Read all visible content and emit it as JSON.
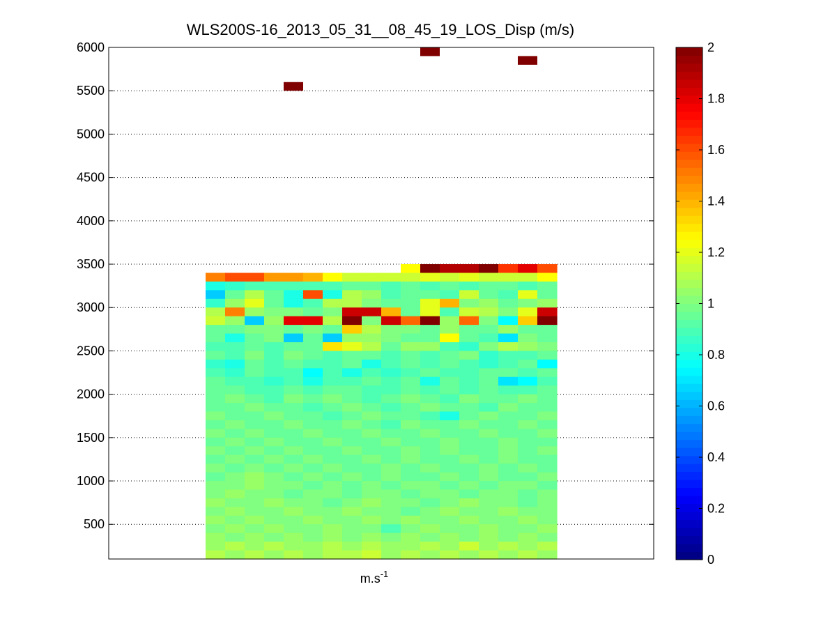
{
  "chart_data": {
    "type": "heatmap",
    "title": "WLS200S-16_2013_05_31__08_45_19_LOS_Disp (m/s)",
    "xlabel": "m.s",
    "xlabel_superscript": "-1",
    "ylabel": "",
    "ylim": [
      100,
      6000
    ],
    "yticks": [
      500,
      1000,
      1500,
      2000,
      2500,
      3000,
      3500,
      4000,
      4500,
      5000,
      5500,
      6000
    ],
    "ygrid": true,
    "grid_style": "dotted",
    "colorbar": {
      "colormap": "jet",
      "range": [
        0,
        2
      ],
      "ticks": [
        "0",
        "0.2",
        "0.4",
        "0.6",
        "0.8",
        "1",
        "1.2",
        "1.4",
        "1.6",
        "1.8",
        "2"
      ]
    },
    "columns": 18,
    "cell_height_m": 100,
    "outlier_cells": [
      {
        "column": 4,
        "altitude": 5550,
        "value": 2.0
      },
      {
        "column": 11,
        "altitude": 5950,
        "value": 2.0
      },
      {
        "column": 16,
        "altitude": 5850,
        "value": 2.0
      }
    ],
    "data_rows": [
      {
        "altitude": 3450,
        "values": [
          null,
          null,
          null,
          null,
          null,
          null,
          null,
          null,
          null,
          null,
          1.25,
          2.0,
          1.9,
          1.9,
          2.0,
          1.65,
          1.8,
          1.6
        ]
      },
      {
        "altitude": 3350,
        "values": [
          1.5,
          1.6,
          1.6,
          1.45,
          1.45,
          1.4,
          1.25,
          1.15,
          1.15,
          1.15,
          1.15,
          1.2,
          1.15,
          1.2,
          1.15,
          1.15,
          1.15,
          1.25
        ]
      },
      {
        "altitude": 3250,
        "values": [
          0.8,
          0.85,
          0.9,
          0.9,
          0.9,
          0.9,
          0.9,
          0.95,
          0.95,
          0.9,
          0.95,
          0.9,
          0.95,
          0.9,
          0.95,
          0.95,
          0.9,
          0.95
        ]
      },
      {
        "altitude": 3150,
        "values": [
          0.65,
          0.95,
          1.1,
          0.95,
          0.8,
          1.6,
          0.8,
          1.1,
          1.05,
          0.9,
          0.95,
          0.95,
          0.9,
          1.15,
          0.95,
          0.9,
          1.2,
          0.95
        ]
      },
      {
        "altitude": 3050,
        "values": [
          0.85,
          1.05,
          1.2,
          0.95,
          0.8,
          0.9,
          1.1,
          1.1,
          1.0,
          0.95,
          0.95,
          1.2,
          1.4,
          1.0,
          1.05,
          0.95,
          1.0,
          1.05
        ]
      },
      {
        "altitude": 2950,
        "values": [
          1.1,
          1.5,
          1.05,
          1.0,
          1.0,
          0.95,
          1.0,
          1.85,
          1.85,
          1.4,
          0.95,
          1.2,
          0.9,
          1.15,
          1.1,
          1.0,
          1.2,
          1.85
        ]
      },
      {
        "altitude": 2850,
        "values": [
          1.15,
          1.05,
          0.65,
          1.05,
          1.8,
          1.8,
          1.1,
          2.0,
          1.0,
          1.85,
          1.55,
          2.0,
          1.05,
          1.55,
          1.0,
          0.75,
          1.35,
          2.0
        ]
      },
      {
        "altitude": 2750,
        "values": [
          0.95,
          0.95,
          1.0,
          1.0,
          0.95,
          1.0,
          0.95,
          1.35,
          1.1,
          1.0,
          1.0,
          0.95,
          1.05,
          0.95,
          0.95,
          1.05,
          0.95,
          0.95
        ]
      },
      {
        "altitude": 2650,
        "values": [
          0.95,
          0.8,
          0.95,
          1.0,
          0.65,
          0.95,
          0.65,
          1.05,
          1.05,
          1.0,
          0.95,
          0.95,
          1.25,
          0.95,
          0.9,
          0.7,
          1.0,
          0.95
        ]
      },
      {
        "altitude": 2550,
        "values": [
          0.9,
          0.9,
          0.95,
          0.9,
          0.95,
          0.95,
          1.3,
          1.2,
          1.1,
          0.95,
          1.05,
          1.05,
          0.9,
          0.85,
          1.0,
          1.1,
          1.05,
          1.0
        ]
      },
      {
        "altitude": 2450,
        "values": [
          0.95,
          0.9,
          1.0,
          0.9,
          1.0,
          0.95,
          0.9,
          0.95,
          0.95,
          0.9,
          0.95,
          0.9,
          0.95,
          1.0,
          0.85,
          0.9,
          0.9,
          0.95
        ]
      },
      {
        "altitude": 2350,
        "values": [
          0.85,
          0.8,
          0.95,
          0.9,
          0.95,
          0.9,
          0.9,
          0.95,
          0.8,
          0.9,
          0.95,
          0.9,
          0.95,
          0.9,
          0.85,
          0.9,
          0.95,
          0.75
        ]
      },
      {
        "altitude": 2250,
        "values": [
          0.9,
          0.85,
          0.95,
          0.9,
          0.9,
          0.75,
          0.9,
          0.8,
          0.9,
          0.85,
          0.9,
          0.95,
          0.9,
          0.9,
          0.95,
          0.95,
          0.9,
          0.95
        ]
      },
      {
        "altitude": 2150,
        "values": [
          0.95,
          0.9,
          0.9,
          0.85,
          0.9,
          0.8,
          0.9,
          0.9,
          0.95,
          0.9,
          0.95,
          0.8,
          0.95,
          0.9,
          0.95,
          0.7,
          0.75,
          0.9
        ]
      },
      {
        "altitude": 2050,
        "values": [
          0.95,
          0.95,
          0.9,
          0.9,
          0.95,
          0.9,
          0.95,
          0.95,
          0.9,
          0.9,
          0.95,
          0.9,
          0.95,
          0.9,
          0.95,
          0.9,
          0.9,
          0.95
        ]
      },
      {
        "altitude": 1950,
        "values": [
          0.95,
          1.0,
          0.95,
          0.9,
          1.0,
          0.95,
          1.0,
          0.95,
          0.9,
          0.95,
          1.0,
          0.95,
          0.9,
          1.0,
          0.95,
          0.95,
          1.0,
          0.95
        ]
      },
      {
        "altitude": 1850,
        "values": [
          0.95,
          0.95,
          1.0,
          0.95,
          0.95,
          0.9,
          0.95,
          1.0,
          0.95,
          0.9,
          0.95,
          1.0,
          0.95,
          0.95,
          0.9,
          1.0,
          0.95,
          0.95
        ]
      },
      {
        "altitude": 1750,
        "values": [
          1.0,
          0.95,
          0.95,
          1.0,
          0.95,
          0.95,
          0.9,
          0.95,
          1.0,
          0.95,
          0.95,
          0.9,
          0.8,
          0.95,
          1.0,
          0.95,
          0.95,
          1.0
        ]
      },
      {
        "altitude": 1650,
        "values": [
          0.95,
          1.0,
          0.95,
          0.95,
          1.0,
          0.95,
          0.95,
          1.0,
          0.95,
          0.9,
          1.0,
          0.95,
          0.95,
          1.0,
          0.95,
          0.95,
          1.0,
          0.95
        ]
      },
      {
        "altitude": 1550,
        "values": [
          1.0,
          0.95,
          1.0,
          0.95,
          0.95,
          1.0,
          0.95,
          0.95,
          1.0,
          0.95,
          0.95,
          1.0,
          0.95,
          0.95,
          1.0,
          0.95,
          0.95,
          1.0
        ]
      },
      {
        "altitude": 1450,
        "values": [
          0.95,
          1.0,
          0.95,
          1.0,
          0.95,
          0.95,
          1.0,
          0.95,
          0.95,
          1.0,
          0.95,
          0.95,
          1.0,
          0.95,
          0.95,
          1.0,
          0.95,
          0.95
        ]
      },
      {
        "altitude": 1350,
        "values": [
          1.0,
          0.95,
          1.0,
          0.95,
          1.0,
          0.95,
          0.95,
          1.0,
          0.95,
          0.95,
          1.0,
          0.95,
          1.0,
          0.95,
          0.95,
          1.0,
          0.95,
          1.0
        ]
      },
      {
        "altitude": 1250,
        "values": [
          0.95,
          1.0,
          0.95,
          1.0,
          0.95,
          1.0,
          0.95,
          0.95,
          1.0,
          0.95,
          1.0,
          0.95,
          0.95,
          1.0,
          0.95,
          1.0,
          0.95,
          0.95
        ]
      },
      {
        "altitude": 1150,
        "values": [
          1.0,
          0.95,
          1.0,
          0.95,
          1.0,
          0.95,
          1.0,
          0.95,
          0.95,
          1.0,
          0.95,
          1.0,
          0.95,
          0.95,
          1.0,
          0.95,
          1.0,
          0.95
        ]
      },
      {
        "altitude": 1050,
        "values": [
          0.95,
          1.0,
          1.05,
          1.0,
          0.95,
          1.0,
          0.95,
          1.0,
          0.95,
          1.0,
          0.95,
          0.95,
          1.0,
          0.95,
          1.0,
          0.95,
          0.95,
          1.0
        ]
      },
      {
        "altitude": 950,
        "values": [
          1.0,
          1.0,
          1.05,
          1.0,
          1.0,
          0.95,
          1.0,
          0.95,
          1.0,
          0.95,
          1.0,
          1.0,
          0.95,
          1.0,
          0.95,
          1.0,
          1.0,
          0.95
        ]
      },
      {
        "altitude": 850,
        "values": [
          1.0,
          1.05,
          1.0,
          1.0,
          0.95,
          1.0,
          1.0,
          0.95,
          1.0,
          1.0,
          0.95,
          1.0,
          1.0,
          0.95,
          1.0,
          1.0,
          0.95,
          1.0
        ]
      },
      {
        "altitude": 750,
        "values": [
          1.05,
          1.0,
          1.0,
          1.05,
          1.0,
          1.0,
          0.95,
          1.0,
          1.05,
          1.0,
          1.0,
          0.95,
          1.0,
          1.05,
          1.0,
          1.0,
          0.95,
          1.0
        ]
      },
      {
        "altitude": 650,
        "values": [
          1.0,
          1.05,
          1.0,
          1.0,
          1.05,
          1.0,
          1.0,
          1.05,
          1.0,
          1.0,
          0.95,
          1.0,
          1.05,
          1.0,
          1.0,
          1.05,
          1.0,
          1.0
        ]
      },
      {
        "altitude": 550,
        "values": [
          1.05,
          1.0,
          1.05,
          1.0,
          1.0,
          1.05,
          1.0,
          1.0,
          1.05,
          1.0,
          1.05,
          1.0,
          1.0,
          1.05,
          1.0,
          1.0,
          1.05,
          1.0
        ]
      },
      {
        "altitude": 450,
        "values": [
          1.0,
          1.05,
          1.0,
          1.05,
          1.0,
          1.0,
          1.05,
          1.0,
          1.0,
          0.9,
          1.0,
          1.05,
          1.0,
          1.0,
          1.05,
          1.0,
          1.0,
          1.05
        ]
      },
      {
        "altitude": 350,
        "values": [
          1.05,
          1.0,
          1.05,
          1.0,
          1.05,
          1.0,
          1.05,
          1.0,
          1.05,
          1.0,
          1.05,
          1.0,
          1.05,
          1.0,
          1.05,
          1.0,
          1.05,
          1.0
        ]
      },
      {
        "altitude": 250,
        "values": [
          1.05,
          1.1,
          1.05,
          1.1,
          1.05,
          1.05,
          1.1,
          1.05,
          1.1,
          1.05,
          1.05,
          1.1,
          1.05,
          1.15,
          1.05,
          1.1,
          1.05,
          1.1
        ]
      },
      {
        "altitude": 150,
        "values": [
          1.1,
          1.05,
          1.1,
          1.05,
          1.1,
          1.05,
          1.1,
          1.1,
          1.15,
          1.05,
          1.1,
          1.05,
          1.1,
          1.05,
          1.1,
          1.05,
          1.1,
          1.05
        ]
      }
    ]
  }
}
